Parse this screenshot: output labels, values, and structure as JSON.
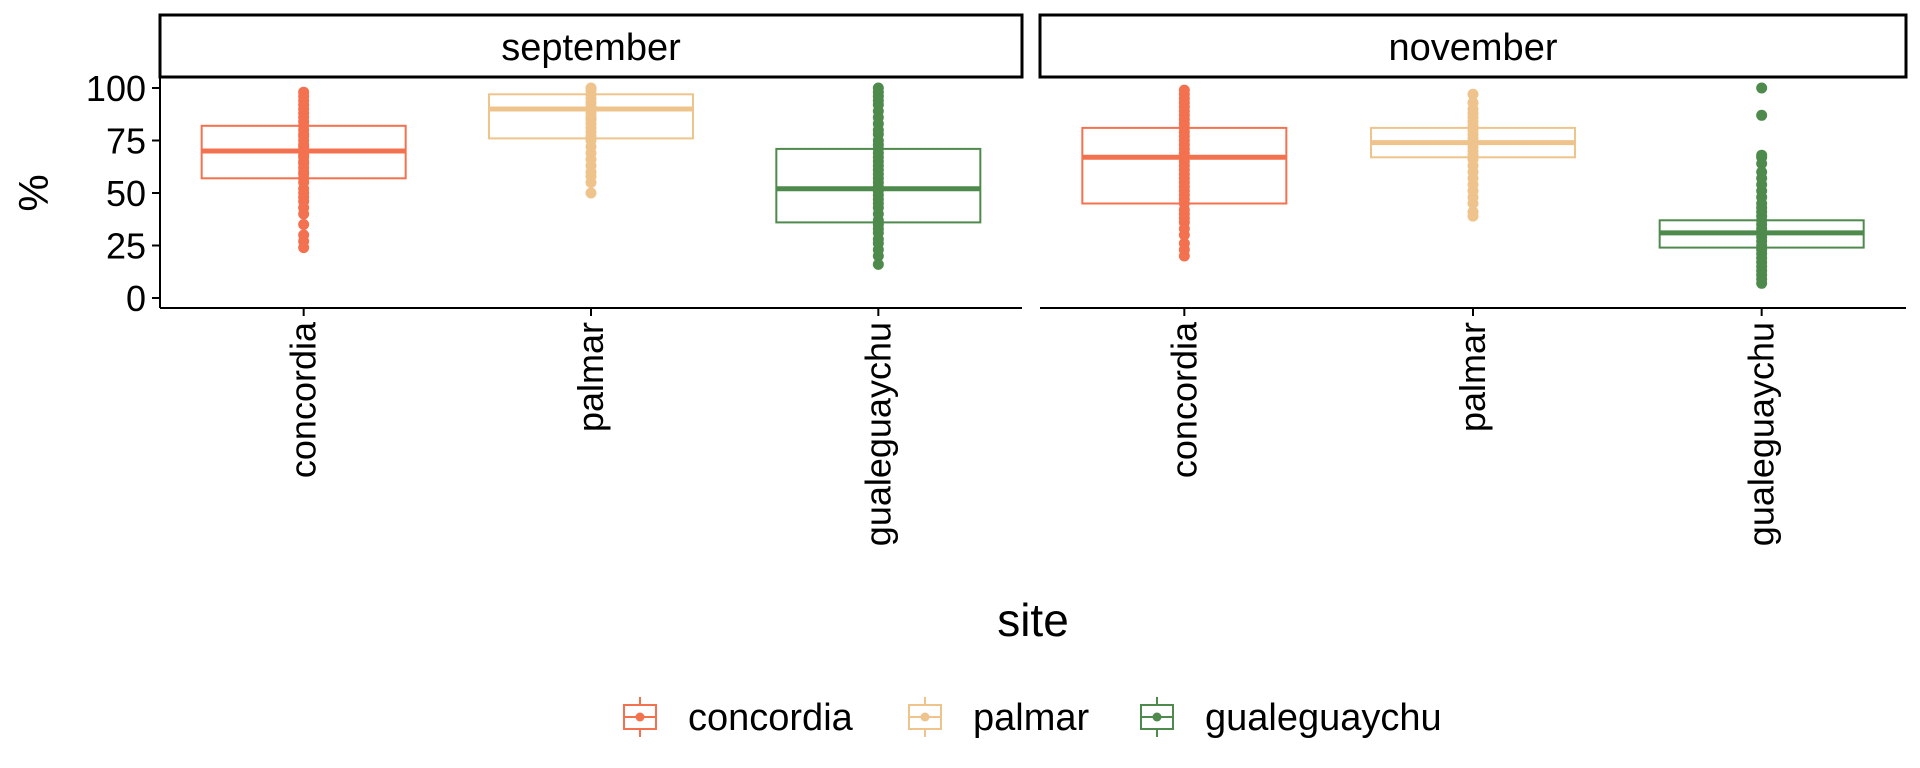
{
  "chart_data": {
    "type": "box",
    "xlabel": "site",
    "ylabel": "%",
    "ylim": [
      -5,
      105
    ],
    "yticks": [
      0,
      25,
      50,
      75,
      100
    ],
    "categories": [
      "concordia",
      "palmar",
      "gualeguaychu"
    ],
    "colors": {
      "concordia": "#F4714F",
      "palmar": "#EEC48C",
      "gualeguaychu": "#4E8A4C"
    },
    "legend": {
      "position": "bottom",
      "entries": [
        "concordia",
        "palmar",
        "gualeguaychu"
      ]
    },
    "grid": false,
    "panels": [
      {
        "title": "september",
        "boxes": [
          {
            "category": "concordia",
            "lower": 57,
            "q1": 57,
            "median": 70,
            "q3": 82,
            "upper": 82,
            "points": [
              24,
              27,
              30,
              35,
              40,
              43,
              46,
              48,
              50,
              52,
              55,
              57,
              59,
              60,
              62,
              64,
              65,
              67,
              68,
              70,
              72,
              73,
              75,
              77,
              78,
              80,
              82,
              84,
              86,
              88,
              90,
              92,
              94,
              96,
              98
            ]
          },
          {
            "category": "palmar",
            "lower": 76,
            "q1": 76,
            "median": 90,
            "q3": 97,
            "upper": 97,
            "points": [
              50,
              55,
              58,
              60,
              63,
              66,
              69,
              72,
              75,
              77,
              79,
              81,
              83,
              85,
              86,
              88,
              90,
              91,
              93,
              95,
              97,
              99,
              100
            ]
          },
          {
            "category": "gualeguaychu",
            "lower": 36,
            "q1": 36,
            "median": 52,
            "q3": 71,
            "upper": 71,
            "points": [
              16,
              20,
              23,
              26,
              28,
              31,
              33,
              35,
              37,
              40,
              43,
              45,
              47,
              49,
              51,
              53,
              55,
              57,
              59,
              61,
              63,
              65,
              67,
              69,
              71,
              73,
              75,
              78,
              80,
              83,
              86,
              89,
              92,
              94,
              96,
              98,
              100
            ]
          }
        ]
      },
      {
        "title": "november",
        "boxes": [
          {
            "category": "concordia",
            "lower": 45,
            "q1": 45,
            "median": 67,
            "q3": 81,
            "upper": 81,
            "points": [
              20,
              23,
              26,
              30,
              33,
              36,
              38,
              40,
              42,
              45,
              47,
              49,
              51,
              53,
              55,
              57,
              59,
              61,
              63,
              65,
              67,
              69,
              71,
              73,
              75,
              77,
              79,
              81,
              83,
              85,
              87,
              89,
              91,
              93,
              95,
              97,
              99
            ]
          },
          {
            "category": "palmar",
            "lower": 67,
            "q1": 67,
            "median": 74,
            "q3": 81,
            "upper": 81,
            "points": [
              39,
              41,
              45,
              48,
              51,
              54,
              57,
              60,
              63,
              66,
              68,
              70,
              72,
              74,
              76,
              78,
              80,
              82,
              84,
              86,
              88,
              90,
              93,
              97
            ]
          },
          {
            "category": "gualeguaychu",
            "lower": 24,
            "q1": 24,
            "median": 31,
            "q3": 37,
            "upper": 37,
            "points": [
              7,
              9,
              11,
              13,
              15,
              17,
              19,
              21,
              23,
              25,
              27,
              29,
              31,
              33,
              35,
              37,
              39,
              41,
              43,
              45,
              48,
              51,
              54,
              57,
              60,
              64,
              67,
              68,
              87,
              100
            ]
          }
        ]
      }
    ]
  }
}
